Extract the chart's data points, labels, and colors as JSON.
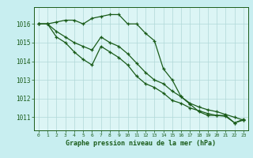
{
  "title": "Graphe pression niveau de la mer (hPa)",
  "background_color": "#c8eef0",
  "plot_bg_color": "#dcf5f5",
  "grid_color": "#b0d8d8",
  "line_color": "#1a5c1a",
  "xlim": [
    -0.5,
    23.5
  ],
  "ylim": [
    1010.3,
    1016.9
  ],
  "yticks": [
    1011,
    1012,
    1013,
    1014,
    1015,
    1016
  ],
  "xticks": [
    0,
    1,
    2,
    3,
    4,
    5,
    6,
    7,
    8,
    9,
    10,
    11,
    12,
    13,
    14,
    15,
    16,
    17,
    18,
    19,
    20,
    21,
    22,
    23
  ],
  "series1_x": [
    0,
    1,
    2,
    3,
    4,
    5,
    6,
    7,
    8,
    9,
    10,
    11,
    12,
    13,
    14,
    15,
    16,
    17,
    18,
    19,
    20,
    21,
    22,
    23
  ],
  "series1_y": [
    1016.0,
    1016.0,
    1016.1,
    1016.2,
    1016.2,
    1016.0,
    1016.3,
    1016.4,
    1016.5,
    1016.5,
    1016.0,
    1016.0,
    1015.5,
    1015.1,
    1013.6,
    1013.0,
    1012.1,
    1011.7,
    1011.3,
    1011.1,
    1011.1,
    1011.1,
    1010.7,
    1010.9
  ],
  "series2_x": [
    0,
    1,
    2,
    3,
    4,
    5,
    6,
    7,
    8,
    9,
    10,
    11,
    12,
    13,
    14,
    15,
    16,
    17,
    18,
    19,
    20,
    21,
    22,
    23
  ],
  "series2_y": [
    1016.0,
    1016.0,
    1015.6,
    1015.3,
    1015.0,
    1014.8,
    1014.6,
    1015.3,
    1015.0,
    1014.8,
    1014.4,
    1013.9,
    1013.4,
    1013.0,
    1012.8,
    1012.4,
    1012.1,
    1011.75,
    1011.55,
    1011.4,
    1011.3,
    1011.15,
    1011.0,
    1010.85
  ],
  "series3_x": [
    0,
    1,
    2,
    3,
    4,
    5,
    6,
    7,
    8,
    9,
    10,
    11,
    12,
    13,
    14,
    15,
    16,
    17,
    18,
    19,
    20,
    21,
    22,
    23
  ],
  "series3_y": [
    1016.0,
    1016.0,
    1015.3,
    1015.0,
    1014.5,
    1014.1,
    1013.8,
    1014.8,
    1014.5,
    1014.2,
    1013.8,
    1013.2,
    1012.8,
    1012.6,
    1012.3,
    1011.9,
    1011.75,
    1011.5,
    1011.35,
    1011.2,
    1011.1,
    1011.05,
    1010.7,
    1010.85
  ]
}
